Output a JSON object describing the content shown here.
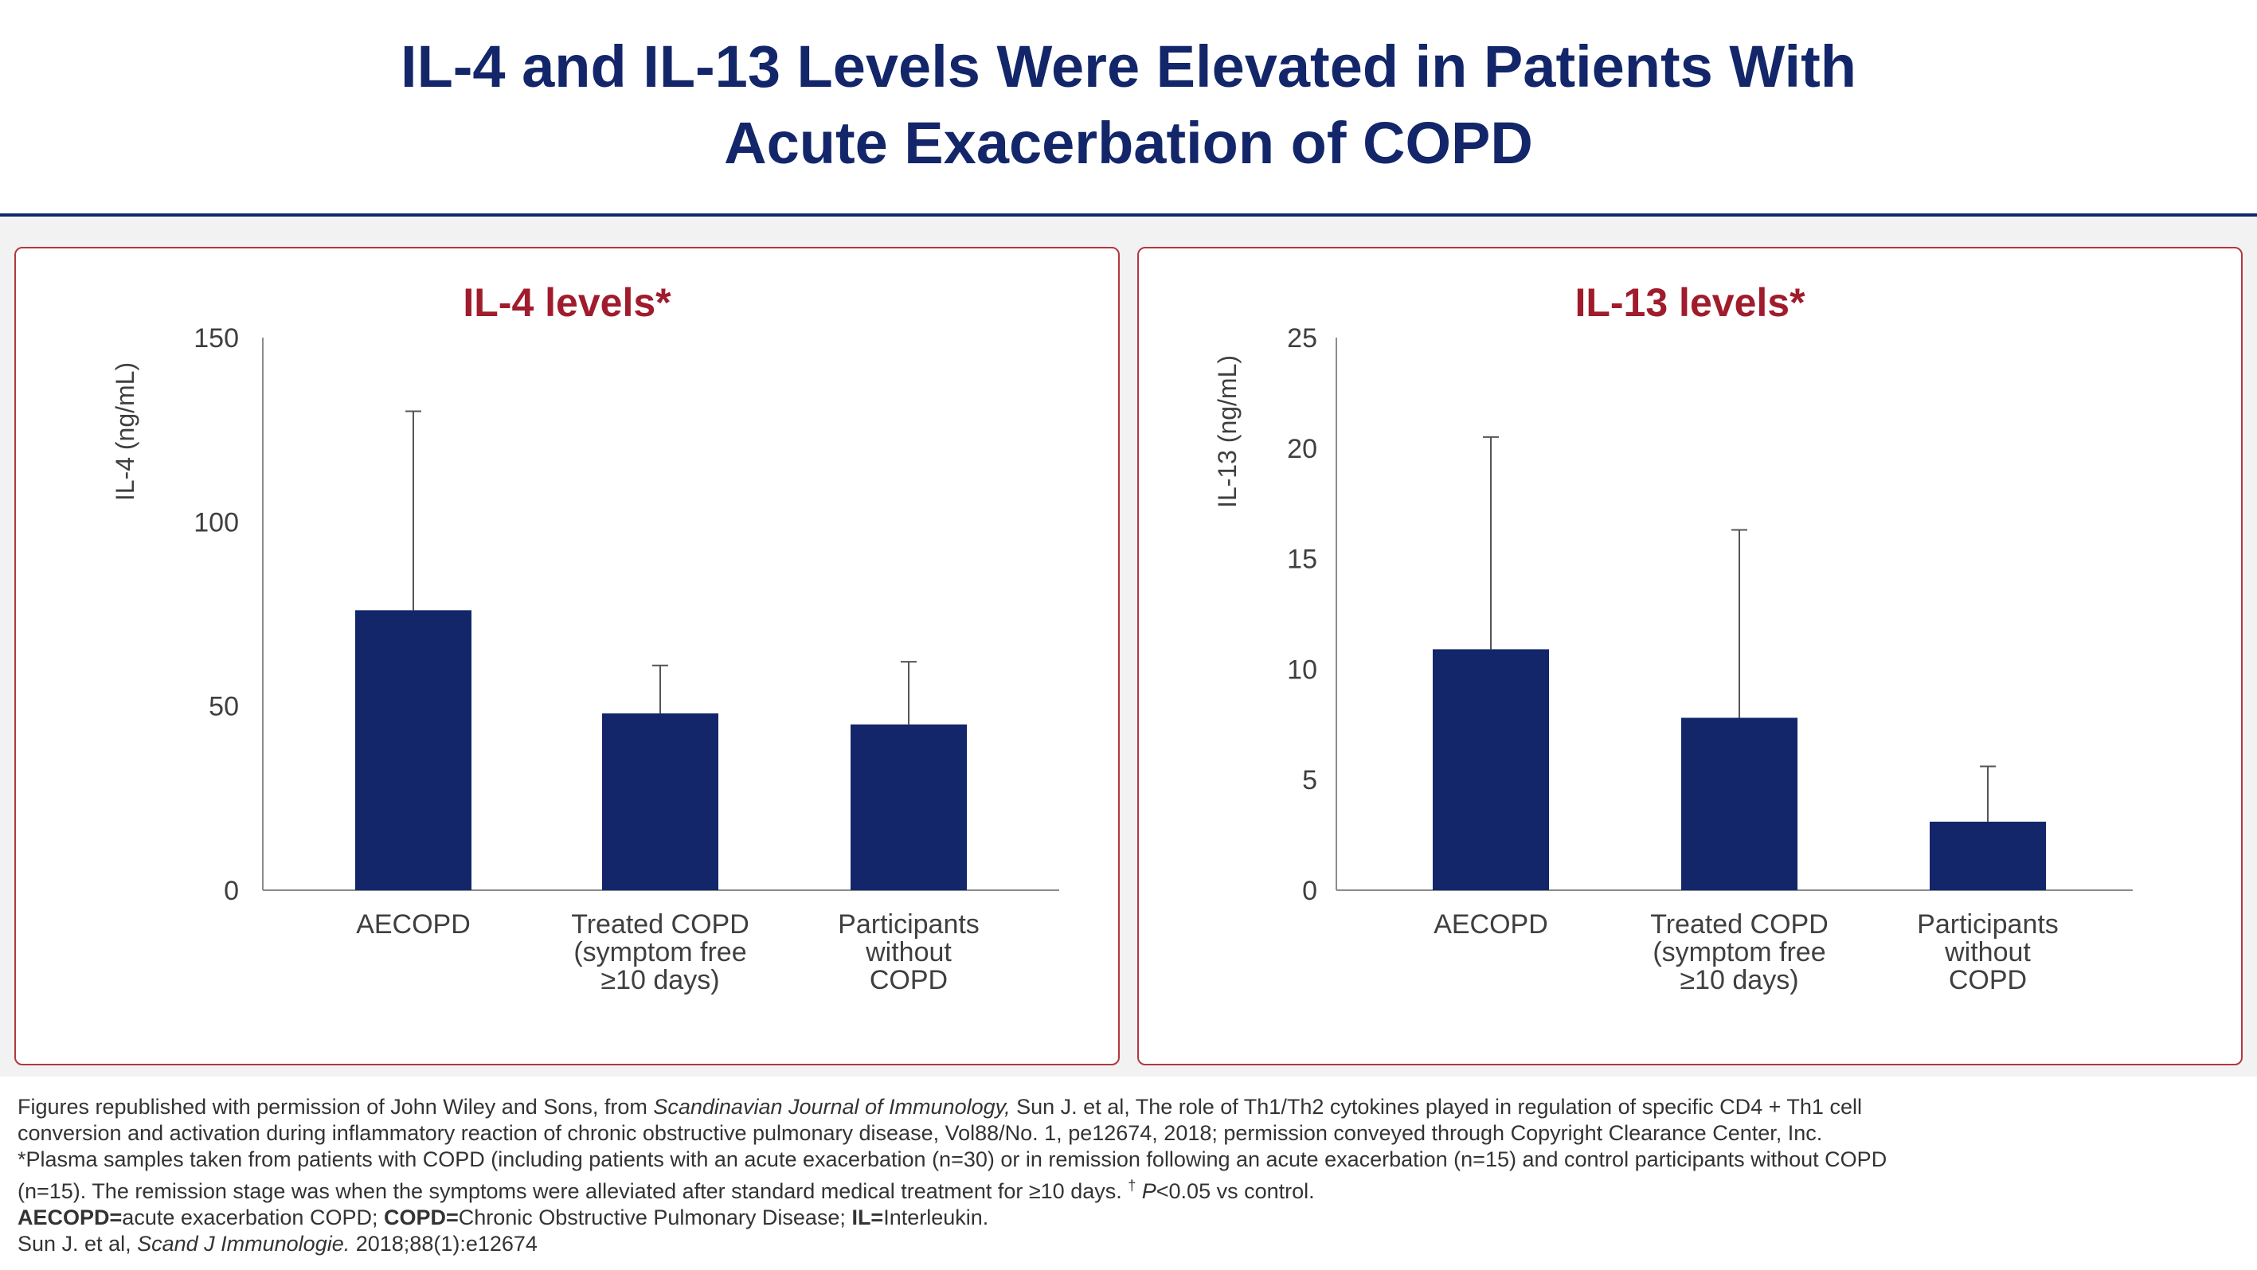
{
  "title_line1": "IL-4 and IL-13 Levels Were Elevated in Patients With",
  "title_line2": "Acute Exacerbation of COPD",
  "colors": {
    "navy": "#13266a",
    "accent_red": "#a01c2c",
    "panel_border": "#b2383f"
  },
  "chart_data": [
    {
      "type": "bar",
      "title": "IL-4 levels*",
      "ylabel": "IL-4 (ng/mL)",
      "xlabel": "",
      "ylim": [
        0,
        150
      ],
      "yticks": [
        0,
        50,
        100,
        150
      ],
      "categories": [
        [
          "AECOPD"
        ],
        [
          "Treated COPD",
          "(symptom free",
          "≥10 days)"
        ],
        [
          "Participants",
          "without",
          "COPD"
        ]
      ],
      "values": [
        76,
        48,
        45
      ],
      "error_upper": [
        130,
        61,
        62
      ],
      "bar_color": "#13266a"
    },
    {
      "type": "bar",
      "title": "IL-13 levels*",
      "ylabel": "IL-13 (ng/mL)",
      "xlabel": "",
      "ylim": [
        0,
        25
      ],
      "yticks": [
        0,
        5,
        10,
        15,
        20,
        25
      ],
      "categories": [
        [
          "AECOPD"
        ],
        [
          "Treated COPD",
          "(symptom free",
          "≥10 days)"
        ],
        [
          "Participants",
          "without",
          "COPD"
        ]
      ],
      "values": [
        10.9,
        7.8,
        3.1
      ],
      "error_upper": [
        20.5,
        16.3,
        5.6
      ],
      "bar_color": "#13266a"
    }
  ],
  "footnotes": {
    "line1_a": "Figures republished with permission of John Wiley and Sons, from ",
    "line1_italic": "Scandinavian Journal of Immunology,",
    "line1_b": " Sun J. et al, The role of Th1/Th2 cytokines played in regulation of specific CD4 + Th1 cell",
    "line2": "conversion and activation during inflammatory reaction of chronic obstructive pulmonary disease, Vol88/No. 1, pe12674, 2018; permission conveyed through Copyright Clearance Center, Inc.",
    "line3": "*Plasma samples taken from patients with COPD (including patients with an acute exacerbation (n=30) or in remission following an acute exacerbation (n=15) and control participants without COPD",
    "line4_a": "(n=15). The remission stage was when the symptoms were alleviated after standard medical treatment for ≥10 days. ",
    "line4_dagger": "†",
    "line4_p": " P",
    "line4_b": "<0.05 vs control.",
    "abbr_1_bold": "AECOPD=",
    "abbr_1": "acute exacerbation COPD; ",
    "abbr_2_bold": "COPD=",
    "abbr_2": "Chronic Obstructive Pulmonary Disease; ",
    "abbr_3_bold": "IL=",
    "abbr_3": "Interleukin.",
    "ref_a": "Sun J. et al, ",
    "ref_italic": "Scand J Immunologie.",
    "ref_b": " 2018;88(1):e12674"
  }
}
